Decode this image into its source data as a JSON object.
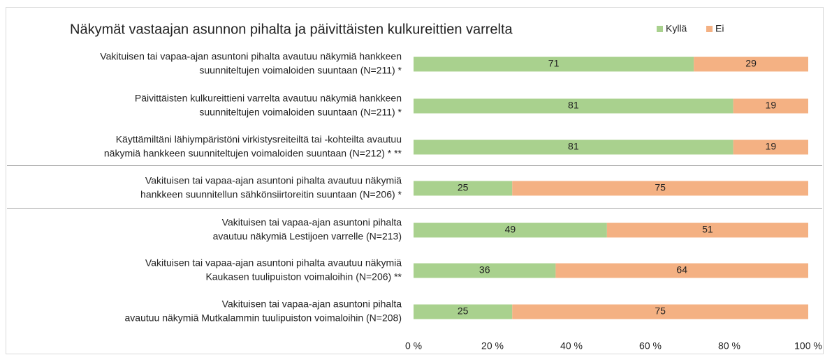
{
  "chart_data": {
    "type": "stacked_bar_horizontal",
    "title": "Näkymät vastaajan asunnon pihalta ja päivittäisten kulkureittien varrelta",
    "categories": [
      [
        "Vakituisen tai vapaa-ajan asuntoni pihalta avautuu näkymiä hankkeen",
        "suunniteltujen voimaloiden suuntaan (N=211) *"
      ],
      [
        "Päivittäisten kulkureittieni varrelta avautuu näkymiä hankkeen",
        "suunniteltujen voimaloiden suuntaan (N=211) *"
      ],
      [
        "Käyttämiltäni lähiympäristöni virkistysreiteiltä tai -kohteilta avautuu",
        "näkymiä hankkeen suunniteltujen voimaloiden suuntaan (N=212) *  **"
      ],
      [
        "Vakituisen tai vapaa-ajan asuntoni pihalta avautuu näkymiä",
        "hankkeen suunnitellun sähkönsiirtoreitin suuntaan (N=206) *"
      ],
      [
        "Vakituisen tai vapaa-ajan asuntoni pihalta",
        "avautuu näkymiä Lestijoen varrelle (N=213)"
      ],
      [
        "Vakituisen tai vapaa-ajan asuntoni pihalta avautuu näkymiä",
        "Kaukasen tuulipuiston voimaloihin  (N=206) **"
      ],
      [
        "Vakituisen tai vapaa-ajan asuntoni pihalta",
        "avautuu näkymiä Mutkalammin tuulipuiston voimaloihin (N=208)"
      ]
    ],
    "series": [
      {
        "name": "Kyllä",
        "color": "#a9d18e",
        "values": [
          71,
          81,
          81,
          25,
          49,
          36,
          25
        ]
      },
      {
        "name": "Ei",
        "color": "#f4b183",
        "values": [
          29,
          19,
          19,
          75,
          51,
          64,
          75
        ]
      }
    ],
    "xlim": [
      0,
      100
    ],
    "xticks": [
      {
        "value": 0,
        "label": "0 %"
      },
      {
        "value": 20,
        "label": "20 %"
      },
      {
        "value": 40,
        "label": "40 %"
      },
      {
        "value": 60,
        "label": "60 %"
      },
      {
        "value": 80,
        "label": "80 %"
      },
      {
        "value": 100,
        "label": "100 %"
      }
    ]
  }
}
